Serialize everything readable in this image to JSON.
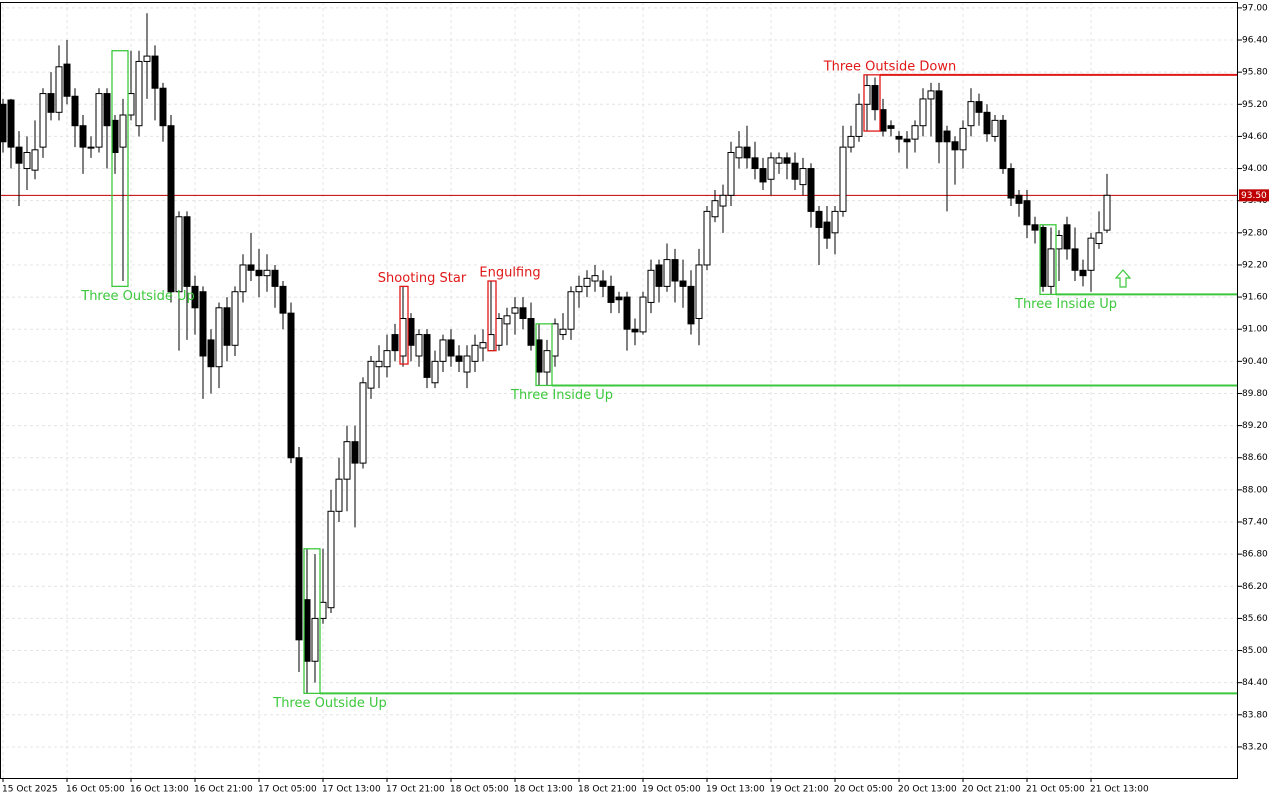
{
  "chart_data": {
    "type": "candlestick",
    "categories": [
      "15 Oct 2025",
      null,
      null,
      null,
      null,
      null,
      null,
      null,
      "16 Oct 05:00",
      null,
      null,
      null,
      null,
      null,
      null,
      null,
      "16 Oct 13:00",
      null,
      null,
      null,
      null,
      null,
      null,
      null,
      "16 Oct 21:00",
      null,
      null,
      null,
      null,
      null,
      null,
      null,
      "17 Oct 05:00",
      null,
      null,
      null,
      null,
      null,
      null,
      null,
      "17 Oct 13:00",
      null,
      null,
      null,
      null,
      null,
      null,
      null,
      "17 Oct 21:00",
      null,
      null,
      null,
      null,
      null,
      null,
      null,
      "18 Oct 05:00",
      null,
      null,
      null,
      null,
      null,
      null,
      null,
      "18 Oct 13:00",
      null,
      null,
      null,
      null,
      null,
      null,
      null,
      "18 Oct 21:00",
      null,
      null,
      null,
      null,
      null,
      null,
      null,
      "19 Oct 05:00",
      null,
      null,
      null,
      null,
      null,
      null,
      null,
      "19 Oct 13:00",
      null,
      null,
      null,
      null,
      null,
      null,
      null,
      "19 Oct 21:00",
      null,
      null,
      null,
      null,
      null,
      null,
      null,
      "20 Oct 05:00",
      null,
      null,
      null,
      null,
      null,
      null,
      null,
      "20 Oct 13:00",
      null,
      null,
      null,
      null,
      null,
      null,
      null,
      "20 Oct 21:00",
      null,
      null,
      null,
      null,
      null,
      null,
      null,
      "21 Oct 05:00",
      null,
      null,
      null,
      null,
      null,
      null,
      null,
      "21 Oct 13:00",
      null,
      null
    ],
    "open": [
      95.2,
      95.28,
      94.4,
      94.0,
      93.97,
      94.4,
      95.4,
      95.05,
      95.95,
      95.35,
      94.8,
      94.4,
      94.4,
      95.4,
      94.9,
      94.4,
      95.0,
      94.8,
      96.0,
      96.1,
      95.5,
      94.8,
      91.7,
      93.1,
      91.8,
      91.7,
      90.8,
      90.3,
      91.4,
      90.7,
      91.7,
      92.2,
      92.1,
      92.0,
      92.1,
      91.8,
      91.3,
      88.6,
      85.95,
      84.8,
      85.6,
      85.8,
      87.6,
      88.2,
      88.9,
      88.5,
      89.9,
      90.3,
      90.3,
      90.9,
      90.5,
      91.2,
      90.5,
      90.9,
      90.0,
      90.4,
      90.8,
      90.5,
      90.2,
      90.4,
      90.65,
      90.6,
      90.7,
      91.1,
      91.3,
      91.4,
      91.2,
      90.8,
      90.2,
      90.5,
      90.9,
      91.0,
      91.7,
      91.8,
      91.9,
      91.9,
      91.8,
      91.6,
      91.6,
      91.0,
      90.95,
      91.5,
      92.2,
      91.8,
      92.3,
      91.9,
      91.8,
      91.2,
      92.2,
      93.1,
      93.3,
      93.5,
      94.2,
      94.4,
      94.2,
      94.0,
      93.8,
      94.1,
      94.2,
      94.1,
      93.7,
      94.0,
      93.2,
      93.0,
      92.8,
      93.2,
      94.4,
      94.6,
      95.2,
      95.55,
      95.1,
      94.8,
      94.6,
      94.55,
      94.55,
      94.8,
      95.3,
      95.45,
      94.7,
      94.5,
      94.35,
      94.8,
      95.25,
      95.05,
      94.6,
      94.9,
      94.0,
      93.5,
      93.4,
      92.95,
      92.9,
      91.8,
      92.5,
      92.95,
      92.5,
      92.1,
      92.1,
      92.6,
      92.85
    ],
    "high": [
      95.3,
      95.3,
      94.7,
      94.6,
      94.9,
      95.5,
      95.8,
      96.3,
      96.4,
      95.5,
      95.0,
      94.6,
      95.5,
      95.5,
      95.0,
      95.3,
      96.2,
      96.2,
      96.9,
      96.3,
      95.6,
      95.0,
      93.2,
      93.2,
      92.0,
      91.8,
      91.0,
      91.5,
      91.6,
      91.8,
      92.4,
      92.8,
      92.5,
      92.4,
      92.2,
      91.9,
      91.5,
      88.8,
      86.9,
      86.8,
      86.9,
      88.0,
      88.6,
      89.2,
      89.2,
      90.1,
      90.5,
      90.7,
      90.9,
      91.1,
      91.8,
      91.3,
      91.0,
      91.0,
      90.6,
      90.9,
      91.0,
      90.7,
      90.7,
      90.9,
      91.0,
      91.9,
      91.3,
      91.4,
      91.6,
      91.6,
      91.5,
      91.1,
      90.8,
      91.2,
      91.3,
      91.8,
      92.0,
      92.1,
      92.2,
      92.1,
      92.0,
      91.7,
      91.7,
      91.2,
      91.7,
      92.3,
      92.3,
      92.6,
      92.5,
      92.3,
      92.1,
      92.5,
      93.3,
      93.6,
      93.7,
      94.5,
      94.7,
      94.8,
      94.5,
      94.2,
      94.3,
      94.3,
      94.3,
      94.3,
      94.2,
      94.1,
      93.3,
      93.3,
      93.3,
      94.8,
      94.8,
      95.4,
      95.75,
      95.7,
      95.3,
      94.9,
      94.7,
      94.7,
      94.9,
      95.5,
      95.6,
      95.6,
      94.8,
      94.6,
      94.9,
      95.5,
      95.4,
      95.2,
      95.0,
      95.0,
      94.1,
      93.6,
      93.6,
      93.1,
      92.95,
      92.9,
      92.85,
      93.1,
      92.9,
      92.3,
      92.8,
      93.2,
      93.9
    ],
    "low": [
      94.3,
      94.0,
      93.3,
      93.6,
      93.8,
      94.2,
      94.9,
      94.9,
      95.2,
      94.4,
      93.9,
      94.2,
      94.3,
      94.0,
      93.9,
      91.9,
      94.9,
      94.6,
      95.3,
      94.9,
      94.5,
      91.5,
      90.6,
      90.8,
      90.9,
      89.7,
      89.8,
      89.9,
      90.4,
      90.5,
      91.5,
      91.9,
      91.6,
      91.7,
      91.4,
      91.0,
      88.5,
      84.6,
      84.2,
      84.4,
      85.5,
      85.7,
      87.4,
      87.6,
      87.3,
      88.4,
      89.7,
      89.9,
      90.1,
      90.4,
      90.3,
      90.4,
      90.3,
      89.9,
      89.9,
      90.2,
      90.3,
      90.2,
      89.9,
      90.2,
      90.4,
      90.6,
      90.6,
      90.7,
      90.9,
      91.0,
      90.6,
      89.95,
      89.95,
      90.3,
      90.8,
      90.8,
      91.4,
      91.6,
      91.7,
      91.6,
      91.3,
      91.3,
      90.6,
      90.7,
      90.9,
      91.3,
      91.5,
      91.7,
      91.5,
      91.4,
      90.9,
      90.7,
      92.1,
      93.0,
      92.8,
      93.3,
      94.0,
      94.0,
      93.8,
      93.6,
      93.5,
      93.9,
      93.8,
      93.6,
      93.5,
      92.9,
      92.2,
      92.5,
      92.4,
      93.1,
      94.3,
      94.5,
      94.7,
      94.9,
      94.6,
      94.6,
      94.3,
      94.0,
      94.3,
      94.6,
      94.6,
      94.1,
      93.2,
      93.7,
      94.0,
      94.6,
      94.8,
      94.5,
      94.5,
      93.9,
      93.3,
      93.1,
      92.7,
      92.6,
      91.7,
      91.65,
      91.9,
      92.3,
      91.9,
      91.8,
      91.7,
      92.5,
      92.8
    ],
    "close": [
      94.5,
      94.4,
      94.1,
      94.3,
      94.35,
      95.4,
      95.05,
      95.9,
      95.35,
      94.8,
      94.4,
      94.4,
      95.4,
      94.8,
      94.3,
      95.0,
      95.4,
      96.0,
      96.1,
      95.5,
      94.8,
      91.7,
      93.1,
      91.8,
      91.4,
      90.5,
      90.3,
      91.4,
      90.7,
      91.7,
      92.2,
      92.1,
      92.0,
      92.1,
      91.8,
      91.3,
      88.6,
      85.2,
      84.8,
      85.6,
      85.9,
      87.6,
      88.2,
      88.9,
      88.5,
      90.0,
      90.4,
      90.4,
      90.6,
      90.6,
      91.2,
      90.7,
      90.9,
      90.1,
      90.4,
      90.8,
      90.5,
      90.4,
      90.5,
      90.7,
      90.75,
      90.9,
      91.2,
      91.25,
      91.4,
      91.2,
      90.7,
      90.2,
      90.6,
      91.1,
      91.0,
      91.7,
      91.8,
      91.95,
      92.0,
      91.8,
      91.5,
      91.55,
      91.0,
      90.95,
      91.6,
      92.1,
      91.8,
      92.3,
      91.9,
      91.8,
      91.1,
      92.2,
      93.2,
      93.4,
      93.5,
      94.3,
      94.4,
      94.2,
      94.0,
      93.75,
      94.2,
      94.2,
      94.1,
      93.8,
      94.0,
      93.2,
      92.9,
      92.7,
      93.2,
      94.4,
      94.6,
      95.2,
      95.55,
      95.1,
      94.7,
      94.75,
      94.55,
      94.5,
      94.8,
      95.3,
      95.45,
      94.5,
      94.5,
      94.35,
      94.75,
      95.25,
      95.05,
      94.65,
      94.9,
      94.0,
      93.45,
      93.35,
      92.95,
      92.85,
      91.8,
      92.5,
      92.75,
      92.5,
      92.1,
      92.0,
      92.7,
      92.8,
      93.5
    ],
    "up_color": "#ffffff",
    "down_color": "#000000",
    "ylim": [
      82.62,
      97.11
    ],
    "yticks": [
      {
        "value": 97.0,
        "label": "97.00"
      },
      {
        "value": 96.4,
        "label": "96.40"
      },
      {
        "value": 95.8,
        "label": "95.80"
      },
      {
        "value": 95.2,
        "label": "95.20"
      },
      {
        "value": 94.6,
        "label": "94.60"
      },
      {
        "value": 94.0,
        "label": "94.00"
      },
      {
        "value": 93.4,
        "label": "93.40"
      },
      {
        "value": 92.8,
        "label": "92.80"
      },
      {
        "value": 92.2,
        "label": "92.20"
      },
      {
        "value": 91.6,
        "label": "91.60"
      },
      {
        "value": 91.0,
        "label": "91.00"
      },
      {
        "value": 90.4,
        "label": "90.40"
      },
      {
        "value": 89.8,
        "label": "89.80"
      },
      {
        "value": 89.2,
        "label": "89.20"
      },
      {
        "value": 88.6,
        "label": "88.60"
      },
      {
        "value": 88.0,
        "label": "88.00"
      },
      {
        "value": 87.4,
        "label": "87.40"
      },
      {
        "value": 86.8,
        "label": "86.80"
      },
      {
        "value": 86.2,
        "label": "86.20"
      },
      {
        "value": 85.6,
        "label": "85.60"
      },
      {
        "value": 85.0,
        "label": "85.00"
      },
      {
        "value": 84.4,
        "label": "84.40"
      },
      {
        "value": 83.8,
        "label": "83.80"
      },
      {
        "value": 83.2,
        "label": "83.20"
      }
    ],
    "grid": true,
    "current_price": {
      "value": 93.5,
      "label": "93.50",
      "color": "#c00000"
    },
    "patterns": [
      {
        "label": "Three Outside Up",
        "color": "#3cc83c",
        "start": 14,
        "end": 15,
        "high": 96.2,
        "low": 91.8
      },
      {
        "label": "Three Outside Up",
        "color": "#3cc83c",
        "start": 38,
        "end": 39,
        "high": 86.9,
        "low": 84.2,
        "level": 84.2
      },
      {
        "label": "Shooting Star",
        "color": "#e01818",
        "start": 50,
        "end": 50,
        "high": 91.8,
        "low": 90.35
      },
      {
        "label": "Engulfing",
        "color": "#e01818",
        "start": 61,
        "end": 61,
        "high": 91.9,
        "low": 90.6
      },
      {
        "label": "Three Inside Up",
        "color": "#3cc83c",
        "start": 67,
        "end": 68,
        "high": 91.1,
        "low": 89.95,
        "level": 89.95
      },
      {
        "label": "Three Outside Down",
        "color": "#e01818",
        "start": 108,
        "end": 109,
        "high": 95.75,
        "low": 94.7,
        "level": 95.75
      },
      {
        "label": "Three Inside Up",
        "color": "#3cc83c",
        "start": 130,
        "end": 131,
        "high": 92.95,
        "low": 91.65,
        "level": 91.65
      }
    ]
  }
}
